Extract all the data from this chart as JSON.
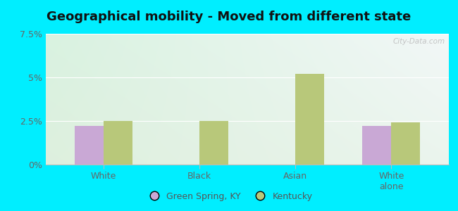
{
  "title": "Geographical mobility - Moved from different state",
  "categories": [
    "White",
    "Black",
    "Asian",
    "White\nalone"
  ],
  "green_spring_values": [
    2.2,
    0.0,
    0.0,
    2.2
  ],
  "kentucky_values": [
    2.5,
    2.5,
    5.2,
    2.4
  ],
  "green_spring_color": "#c9a8d5",
  "kentucky_color": "#b8c87a",
  "ylim": [
    0,
    7.5
  ],
  "yticks": [
    0,
    2.5,
    5.0,
    7.5
  ],
  "ytick_labels": [
    "0%",
    "2.5%",
    "5%",
    "7.5%"
  ],
  "bg_top_left": "#c8e8d0",
  "bg_top_right": "#e8f0f0",
  "bg_bottom": "#dff0e0",
  "outer_background": "#00eeff",
  "bar_width": 0.3,
  "legend_label_gs": "Green Spring, KY",
  "legend_label_ky": "Kentucky",
  "watermark": "City-Data.com",
  "title_fontsize": 13,
  "tick_fontsize": 9
}
